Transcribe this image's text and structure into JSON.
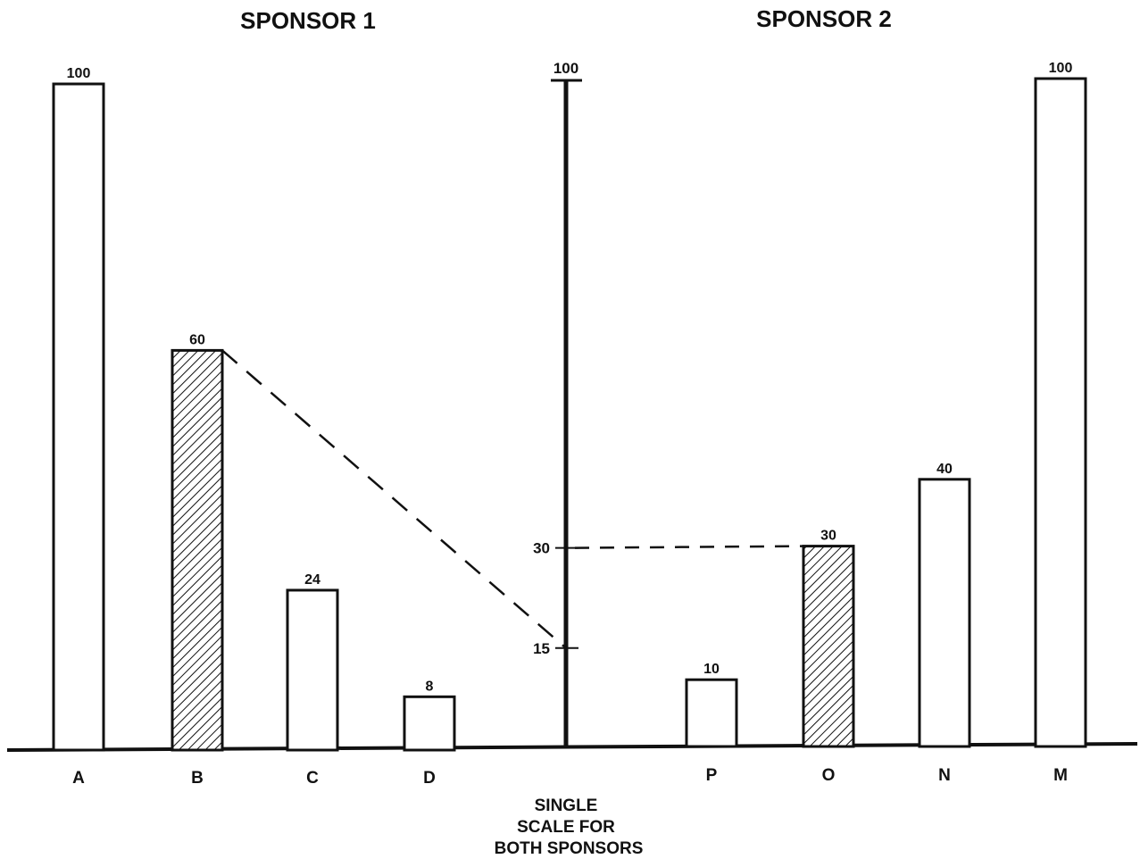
{
  "chart_data": {
    "type": "bar",
    "panels": [
      {
        "title": "SPONSOR 1",
        "categories": [
          "A",
          "B",
          "C",
          "D"
        ],
        "values": [
          100,
          60,
          24,
          8
        ],
        "highlighted": "B"
      },
      {
        "title": "SPONSOR 2",
        "categories": [
          "P",
          "O",
          "N",
          "M"
        ],
        "values": [
          10,
          30,
          40,
          100
        ],
        "highlighted": "O"
      }
    ],
    "shared_scale": {
      "label_lines": [
        "SINGLE",
        "SCALE FOR",
        "BOTH SPONSORS"
      ],
      "ticks": [
        "15",
        "30",
        "100"
      ],
      "range": [
        0,
        100
      ]
    },
    "connectors": [
      {
        "from": "Sponsor 1 bar B (60)",
        "to": "scale 15"
      },
      {
        "from": "scale 30",
        "to": "Sponsor 2 bar O (30)"
      }
    ],
    "grid": false,
    "colors": {
      "ink": "#111111",
      "bar_fill": "#ffffff",
      "highlight_pattern": "diagonal-hatch"
    }
  }
}
